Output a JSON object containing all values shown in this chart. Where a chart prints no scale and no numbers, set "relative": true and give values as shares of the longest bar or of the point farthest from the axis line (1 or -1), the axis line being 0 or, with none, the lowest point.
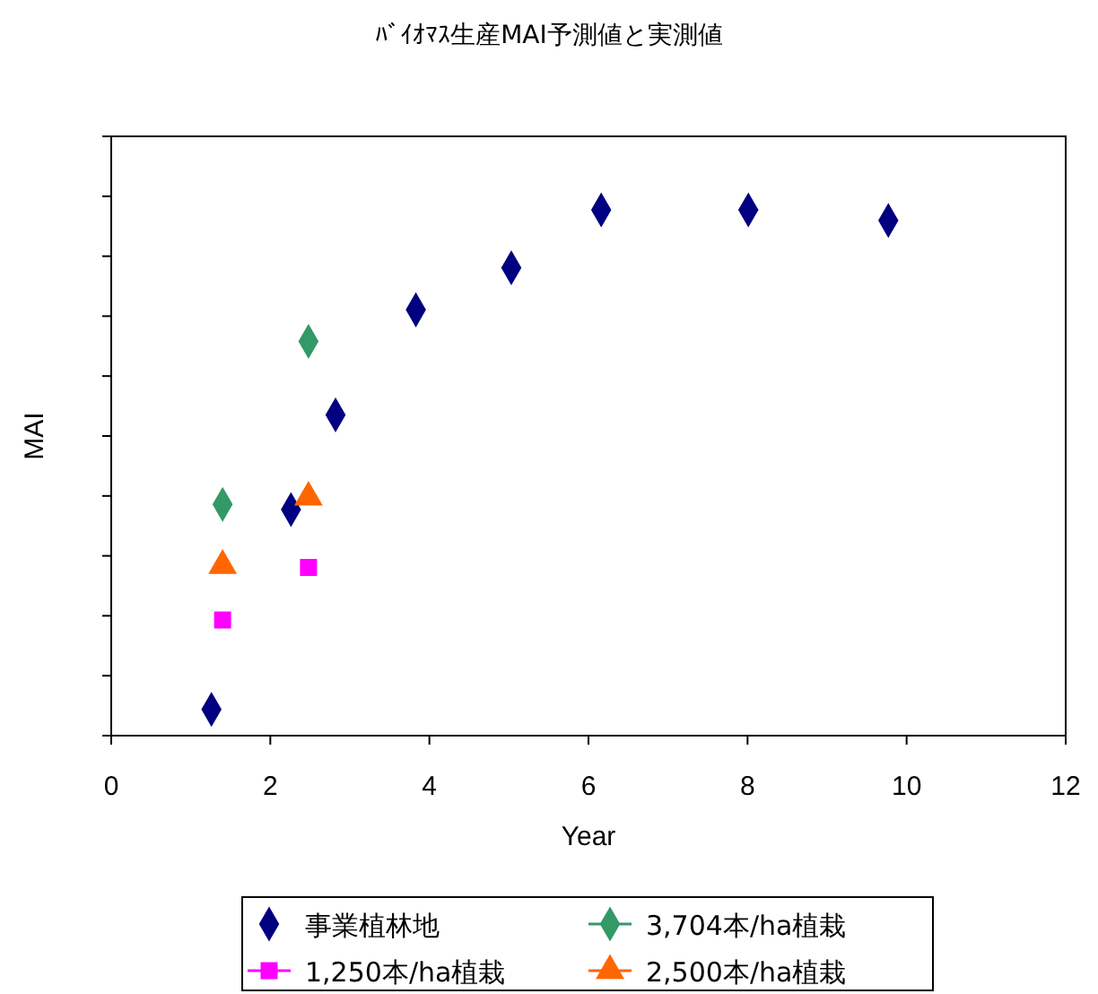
{
  "chart_data": {
    "type": "scatter",
    "title": "ﾊﾞｲｵﾏｽ生産MAI予測値と実測値",
    "xlabel": "Year",
    "ylabel": "MAI",
    "relative": true,
    "xlim": [
      0,
      12
    ],
    "xticks": [
      0,
      2,
      4,
      6,
      8,
      10,
      12
    ],
    "grid": false,
    "legend": "bottom",
    "series": [
      {
        "name": "事業植林地",
        "color": "#000080",
        "marker": "diamond",
        "x": [
          1.26,
          2.26,
          2.82,
          3.83,
          5.03,
          6.16,
          8.01,
          9.77
        ],
        "values": [
          0.05,
          0.43,
          0.61,
          0.81,
          0.89,
          1,
          1,
          0.98
        ]
      },
      {
        "name": "3,704本/ha植栽",
        "color": "#339966",
        "marker": "diamond",
        "x": [
          1.4,
          2.48
        ],
        "values": [
          0.44,
          0.75
        ]
      },
      {
        "name": "1,250本/ha植栽",
        "color": "#ff00ff",
        "marker": "square",
        "x": [
          1.4,
          2.48
        ],
        "values": [
          0.22,
          0.32
        ]
      },
      {
        "name": "2,500本/ha植栽",
        "color": "#ff6600",
        "marker": "triangle",
        "x": [
          1.4,
          2.48
        ],
        "values": [
          0.32,
          0.45
        ]
      }
    ]
  }
}
